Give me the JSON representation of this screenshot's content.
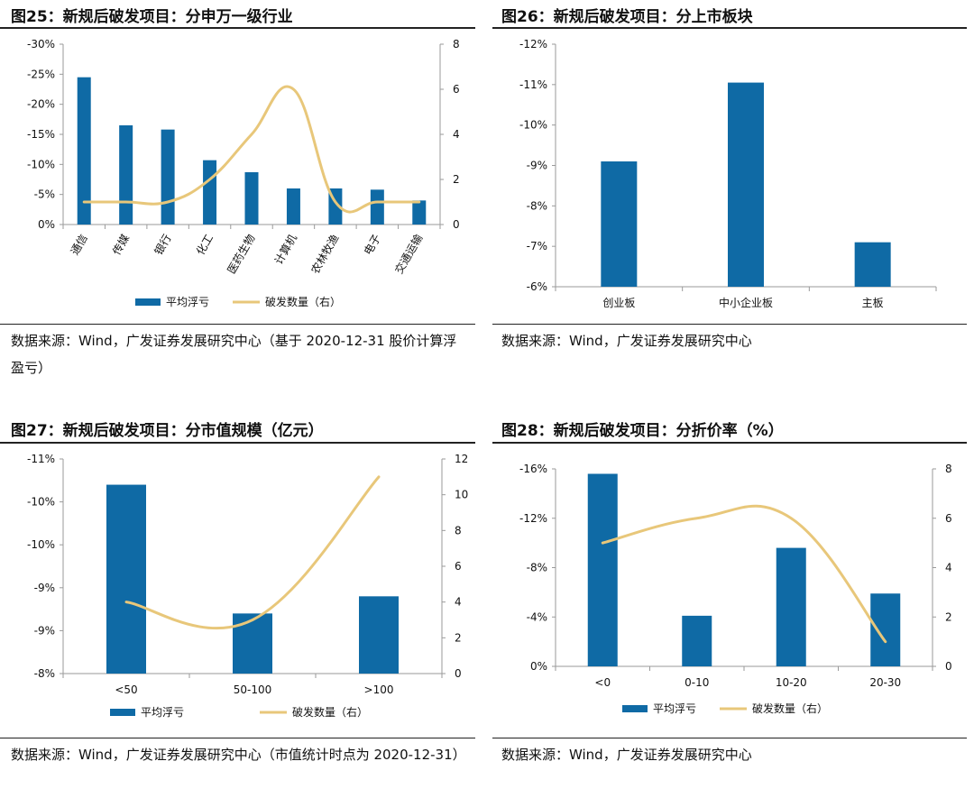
{
  "colors": {
    "bar": "#0f6aa5",
    "line": "#e8c77a",
    "axis": "#9a9a9a",
    "rule": "#222222"
  },
  "panels": [
    {
      "title": "图25：新规后破发项目：分申万一级行业",
      "source": "数据来源：Wind，广发证券发展研究中心（基于 2020-12-31 股价计算浮盈亏）",
      "chart_data": {
        "type": "bar",
        "categories": [
          "通信",
          "传媒",
          "银行",
          "化工",
          "医药生物",
          "计算机",
          "农林牧渔",
          "电子",
          "交通运输"
        ],
        "series": [
          {
            "name": "平均浮亏",
            "type": "bar",
            "axis": "left",
            "values": [
              -24.5,
              -16.5,
              -15.8,
              -10.7,
              -8.7,
              -6.0,
              -6.0,
              -5.8,
              -4.0
            ]
          },
          {
            "name": "破发数量（右）",
            "type": "line",
            "axis": "right",
            "values": [
              1,
              1,
              1,
              2,
              4,
              6,
              1,
              1,
              1
            ]
          }
        ],
        "left_ticks": [
          "-30%",
          "-25%",
          "-20%",
          "-15%",
          "-10%",
          "-5%",
          "0%"
        ],
        "right_ticks": [
          "8",
          "6",
          "4",
          "2",
          "0"
        ],
        "ylim_left": [
          0,
          -30
        ],
        "ylim_right": [
          0,
          8
        ],
        "legend_position": "bottom"
      }
    },
    {
      "title": "图26：新规后破发项目：分上市板块",
      "source": "数据来源：Wind，广发证券发展研究中心",
      "chart_data": {
        "type": "bar",
        "categories": [
          "创业板",
          "中小企业板",
          "主板"
        ],
        "series": [
          {
            "name": "",
            "type": "bar",
            "axis": "left",
            "values": [
              -9.1,
              -11.05,
              -7.1
            ]
          }
        ],
        "left_ticks": [
          "-12%",
          "-11%",
          "-10%",
          "-9%",
          "-8%",
          "-7%",
          "-6%"
        ],
        "ylim_left": [
          -6,
          -12
        ]
      }
    },
    {
      "title": "图27：新规后破发项目：分市值规模（亿元）",
      "source": "数据来源：Wind，广发证券发展研究中心（市值统计时点为 2020-12-31）",
      "chart_data": {
        "type": "bar",
        "categories": [
          "<50",
          "50-100",
          ">100"
        ],
        "series": [
          {
            "name": "平均浮亏",
            "type": "bar",
            "axis": "left",
            "values": [
              -10.2,
              -8.7,
              -8.9
            ]
          },
          {
            "name": "破发数量（右）",
            "type": "line",
            "axis": "right",
            "values": [
              4,
              3,
              11
            ]
          }
        ],
        "left_ticks": [
          "-11%",
          "-10%",
          "-10%",
          "-9%",
          "-9%",
          "-8%"
        ],
        "right_ticks": [
          "12",
          "10",
          "8",
          "6",
          "4",
          "2",
          "0"
        ],
        "ylim_left": [
          -8,
          -10.5
        ],
        "ylim_right": [
          0,
          12
        ],
        "legend_position": "bottom"
      }
    },
    {
      "title": "图28：新规后破发项目：分折价率（%）",
      "source": "数据来源：Wind，广发证券发展研究中心",
      "chart_data": {
        "type": "bar",
        "categories": [
          "<0",
          "0-10",
          "10-20",
          "20-30"
        ],
        "series": [
          {
            "name": "平均浮亏",
            "type": "bar",
            "axis": "left",
            "values": [
              -15.6,
              -4.1,
              -9.6,
              -5.9
            ]
          },
          {
            "name": "破发数量（右）",
            "type": "line",
            "axis": "right",
            "values": [
              5,
              6,
              6,
              1
            ]
          }
        ],
        "left_ticks": [
          "-16%",
          "-12%",
          "-8%",
          "-4%",
          "0%"
        ],
        "right_ticks": [
          "8",
          "6",
          "4",
          "2",
          "0"
        ],
        "ylim_left": [
          0,
          -16
        ],
        "ylim_right": [
          0,
          8
        ],
        "legend_position": "bottom"
      }
    }
  ]
}
